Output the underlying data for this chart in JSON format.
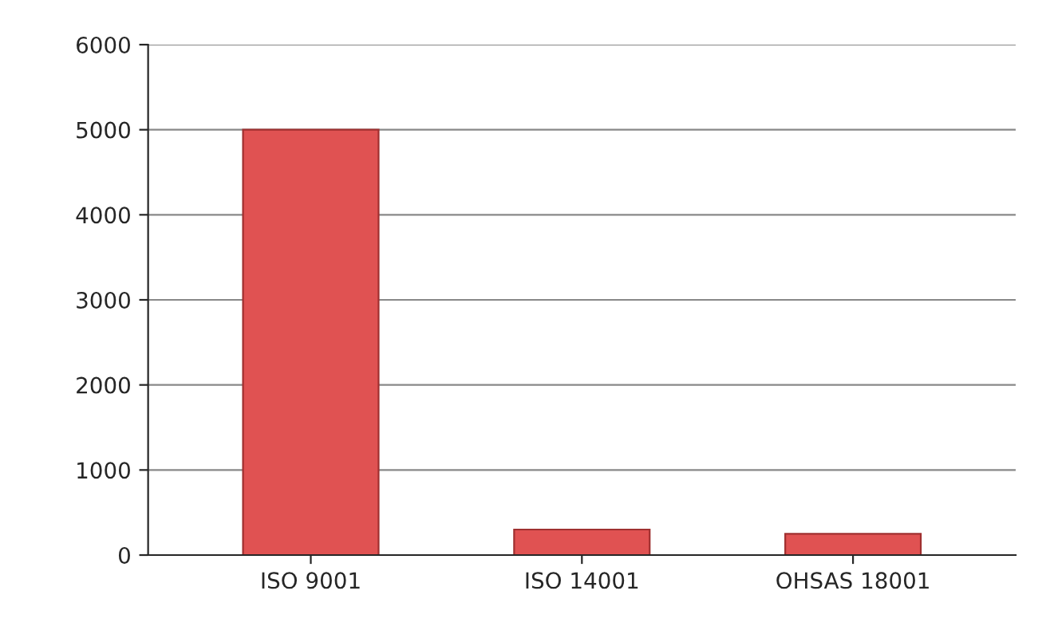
{
  "chart_data": {
    "type": "bar",
    "categories": [
      "ISO 9001",
      "ISO 14001",
      "OHSAS 18001"
    ],
    "values": [
      5000,
      300,
      250
    ],
    "color": "#e05252",
    "ylim": [
      0,
      6000
    ],
    "yticks": [
      0,
      1000,
      2000,
      3000,
      4000,
      5000,
      6000
    ],
    "grid": "y"
  }
}
